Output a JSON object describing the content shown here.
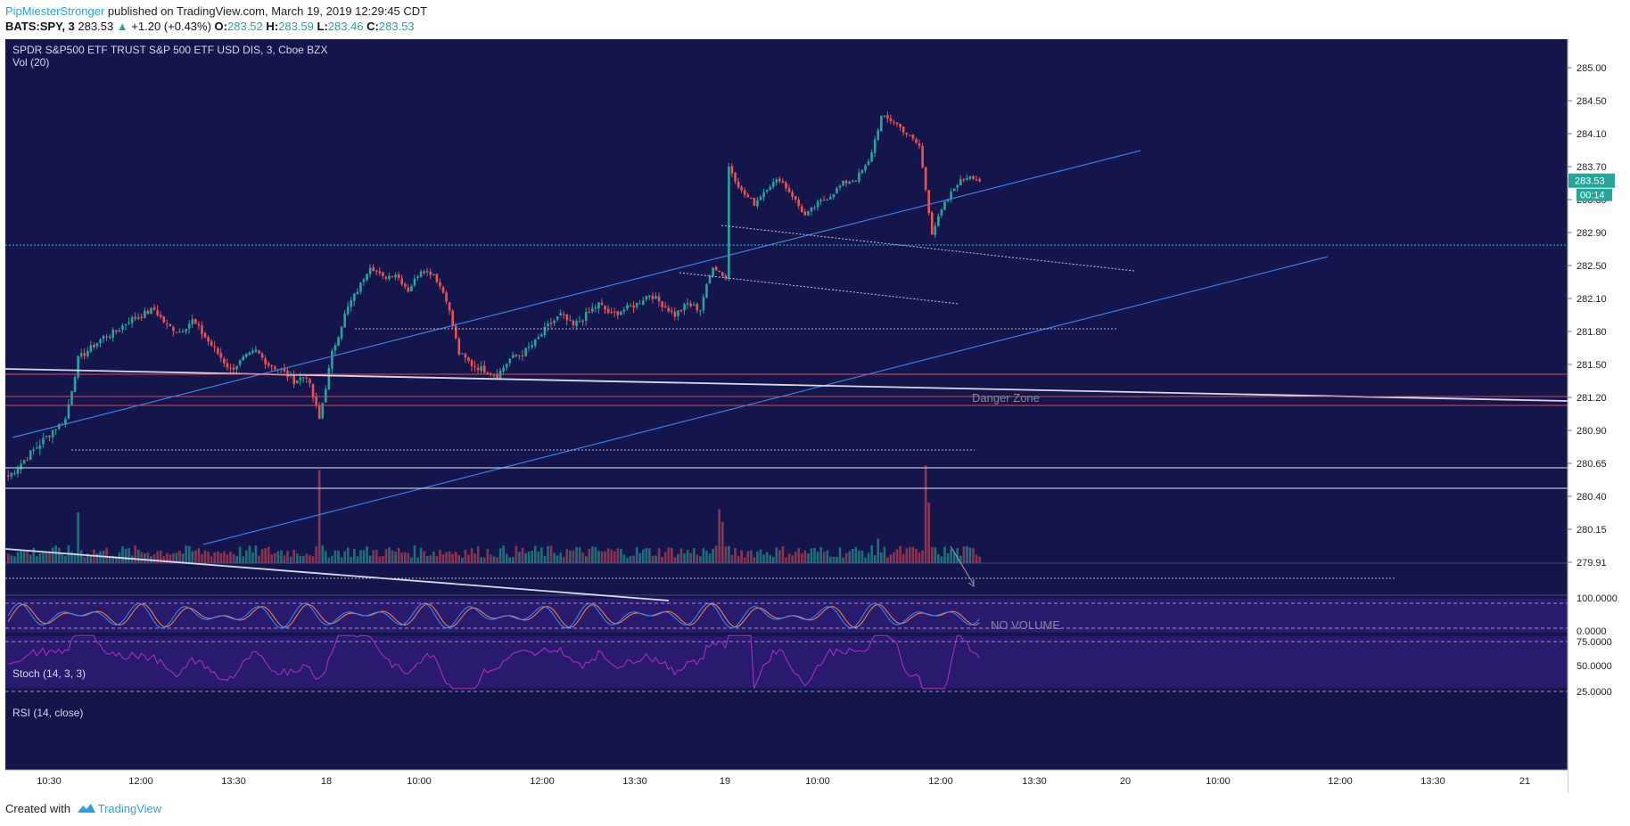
{
  "header": {
    "author": "PipMiesterStronger",
    "published_text": "published on TradingView.com, March 19, 2019 12:29:45 CDT",
    "symbol_interval": "BATS:SPY, 3",
    "last": "283.53",
    "change_arrow": "▲",
    "change": "+1.20 (+0.43%)",
    "o_label": "O:",
    "o_val": "283.52",
    "h_label": "H:",
    "h_val": "283.59",
    "l_label": "L:",
    "l_val": "283.46",
    "c_label": "C:",
    "c_val": "283.53"
  },
  "footer": {
    "created_with": "Created with",
    "brand": "TradingView"
  },
  "colors": {
    "background": "#14154a",
    "panel_bg": "#2a1a6e",
    "up": "#26a69a",
    "down": "#ef5350",
    "trend_blue": "#3d7ee8",
    "rsi": "#b030c8",
    "stoch_k": "#3d8bff",
    "stoch_d": "#ff8a3d",
    "price_tag": "#26a69a"
  },
  "chart_data": {
    "type": "candlestick",
    "title": "SPDR S&P500 ETF TRUST S&P 500 ETF USD DIS, 3, Cboe BZX",
    "volume_label": "Vol (20)",
    "ylim": [
      279.91,
      285.0
    ],
    "y_ticks": [
      "285.00",
      "284.50",
      "284.10",
      "283.70",
      "283.30",
      "282.90",
      "282.50",
      "282.10",
      "281.80",
      "281.50",
      "281.20",
      "280.90",
      "280.65",
      "280.40",
      "280.15",
      "279.91"
    ],
    "last_price": "283.53",
    "countdown": "00:14",
    "x_ticks": [
      "10:30",
      "12:00",
      "13:30",
      "18",
      "10:00",
      "12:00",
      "13:30",
      "19",
      "10:00",
      "12:00",
      "13:30",
      "20",
      "10:00",
      "12:00",
      "13:30",
      "21"
    ],
    "price_path": [
      [
        0,
        280.55
      ],
      [
        6,
        280.7
      ],
      [
        12,
        280.85
      ],
      [
        18,
        281.0
      ],
      [
        22,
        281.55
      ],
      [
        26,
        281.65
      ],
      [
        30,
        281.75
      ],
      [
        34,
        281.8
      ],
      [
        38,
        281.9
      ],
      [
        42,
        281.95
      ],
      [
        46,
        282.0
      ],
      [
        50,
        281.85
      ],
      [
        54,
        281.8
      ],
      [
        58,
        281.9
      ],
      [
        62,
        281.75
      ],
      [
        66,
        281.6
      ],
      [
        70,
        281.45
      ],
      [
        74,
        281.55
      ],
      [
        78,
        281.62
      ],
      [
        82,
        281.5
      ],
      [
        86,
        281.45
      ],
      [
        90,
        281.35
      ],
      [
        94,
        281.4
      ],
      [
        98,
        281.0
      ],
      [
        102,
        281.6
      ],
      [
        106,
        281.95
      ],
      [
        110,
        282.2
      ],
      [
        114,
        282.5
      ],
      [
        118,
        282.35
      ],
      [
        122,
        282.4
      ],
      [
        126,
        282.2
      ],
      [
        130,
        282.45
      ],
      [
        134,
        282.4
      ],
      [
        138,
        282.1
      ],
      [
        142,
        281.6
      ],
      [
        146,
        281.5
      ],
      [
        150,
        281.45
      ],
      [
        154,
        281.4
      ],
      [
        158,
        281.55
      ],
      [
        162,
        281.6
      ],
      [
        166,
        281.7
      ],
      [
        170,
        281.85
      ],
      [
        174,
        281.95
      ],
      [
        178,
        281.85
      ],
      [
        182,
        281.95
      ],
      [
        186,
        282.05
      ],
      [
        190,
        281.95
      ],
      [
        194,
        282.0
      ],
      [
        198,
        282.05
      ],
      [
        202,
        282.15
      ],
      [
        206,
        282.05
      ],
      [
        210,
        281.95
      ],
      [
        214,
        282.05
      ],
      [
        218,
        282.0
      ],
      [
        222,
        282.5
      ],
      [
        226,
        282.35
      ],
      [
        227,
        283.7
      ],
      [
        231,
        283.4
      ],
      [
        235,
        283.25
      ],
      [
        239,
        283.45
      ],
      [
        243,
        283.55
      ],
      [
        247,
        283.35
      ],
      [
        251,
        283.1
      ],
      [
        255,
        283.25
      ],
      [
        259,
        283.35
      ],
      [
        263,
        283.5
      ],
      [
        267,
        283.55
      ],
      [
        271,
        283.75
      ],
      [
        275,
        284.3
      ],
      [
        279,
        284.25
      ],
      [
        283,
        284.1
      ],
      [
        287,
        283.95
      ],
      [
        291,
        282.9
      ],
      [
        295,
        283.25
      ],
      [
        299,
        283.5
      ],
      [
        303,
        283.6
      ],
      [
        306,
        283.53
      ]
    ],
    "volume_spikes": [
      [
        98,
        "up",
        0.95
      ],
      [
        22,
        "up",
        0.52
      ],
      [
        224,
        "up",
        0.55
      ],
      [
        225,
        "up",
        0.42
      ],
      [
        289,
        "down",
        1.0
      ],
      [
        290,
        "up",
        0.62
      ],
      [
        274,
        "up",
        0.25
      ]
    ],
    "annotations": [
      {
        "text": "Danger Zone"
      },
      {
        "text": "NO VOLUME"
      }
    ],
    "indicators": [
      {
        "name": "Stoch (14, 3, 3)",
        "levels": [
          "100.0000",
          "0.0000"
        ]
      },
      {
        "name": "RSI (14, close)",
        "levels": [
          "75.0000",
          "50.0000",
          "25.0000"
        ]
      }
    ]
  }
}
